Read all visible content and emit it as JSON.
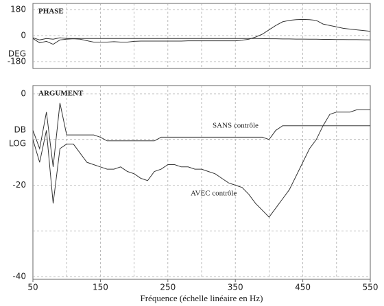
{
  "chart_data": [
    {
      "type": "line",
      "title": "PHASE",
      "ylabel": "DEG",
      "x": [
        50,
        60,
        70,
        80,
        90,
        100,
        110,
        120,
        130,
        140,
        150,
        160,
        170,
        180,
        190,
        200,
        210,
        220,
        230,
        240,
        250,
        260,
        270,
        280,
        290,
        300,
        310,
        320,
        330,
        340,
        350,
        360,
        370,
        380,
        390,
        400,
        410,
        420,
        430,
        440,
        450,
        460,
        470,
        480,
        490,
        500,
        510,
        520,
        530,
        540,
        550
      ],
      "series": [
        {
          "color": "#333333",
          "values": [
            -20,
            -50,
            -40,
            -60,
            -30,
            -25,
            -22,
            -25,
            -35,
            -45,
            -45,
            -45,
            -42,
            -45,
            -45,
            -40,
            -38,
            -38,
            -38,
            -38,
            -38,
            -38,
            -38,
            -36,
            -36,
            -36,
            -36,
            -36,
            -36,
            -36,
            -36,
            -32,
            -25,
            -10,
            10,
            40,
            70,
            95,
            105,
            110,
            112,
            110,
            105,
            80,
            70,
            60,
            50,
            45,
            40,
            35,
            30
          ]
        },
        {
          "color": "#333333",
          "values": [
            -15,
            -30,
            -20,
            -25,
            -15,
            -20,
            -20,
            -20,
            -20,
            -20,
            -20,
            -20,
            -20,
            -20,
            -20,
            -20,
            -20,
            -20,
            -20,
            -20,
            -20,
            -20,
            -20,
            -20,
            -20,
            -20,
            -20,
            -20,
            -20,
            -20,
            -20,
            -20,
            -20,
            -20,
            -21,
            -22,
            -22,
            -23,
            -23,
            -24,
            -24,
            -25,
            -25,
            -26,
            -26,
            -27,
            -27,
            -28,
            -28,
            -29,
            -30
          ]
        }
      ],
      "xlim": [
        50,
        550
      ],
      "xgrid": [
        100,
        150,
        200,
        250,
        300,
        350,
        400,
        450,
        500
      ],
      "ylim": [
        -180,
        180
      ],
      "yticks": [
        180,
        0,
        -180
      ],
      "grid": true
    },
    {
      "type": "line",
      "title": "ARGUMENT",
      "ylabel_lines": [
        "DB",
        "LOG"
      ],
      "xlabel": "Fréquence (échelle linéaire en Hz)",
      "x": [
        50,
        60,
        70,
        80,
        90,
        100,
        110,
        120,
        130,
        140,
        150,
        160,
        170,
        180,
        190,
        200,
        210,
        220,
        230,
        240,
        250,
        260,
        270,
        280,
        290,
        300,
        310,
        320,
        330,
        340,
        350,
        360,
        370,
        380,
        390,
        400,
        410,
        420,
        430,
        440,
        450,
        460,
        470,
        480,
        490,
        500,
        510,
        520,
        530,
        540,
        550
      ],
      "series": [
        {
          "name": "SANS contrôle",
          "color": "#333333",
          "values": [
            -8,
            -12,
            -4,
            -16,
            -2,
            -9,
            -9,
            -9,
            -9,
            -9,
            -9.5,
            -10.3,
            -10.3,
            -10.3,
            -10.3,
            -10.3,
            -10.3,
            -10.3,
            -10.3,
            -9.5,
            -9.5,
            -9.5,
            -9.5,
            -9.5,
            -9.5,
            -9.5,
            -9.5,
            -9.5,
            -9.5,
            -9.5,
            -9.5,
            -9.5,
            -9.5,
            -9.5,
            -9.5,
            -10,
            -8,
            -7,
            -7,
            -7,
            -7,
            -7,
            -7,
            -7,
            -7,
            -7,
            -7,
            -7,
            -7,
            -7,
            -7
          ]
        },
        {
          "name": "AVEC contrôle",
          "color": "#333333",
          "values": [
            -10,
            -15,
            -8,
            -24,
            -12,
            -11,
            -11,
            -13,
            -15,
            -15.5,
            -16,
            -16.5,
            -16.5,
            -16,
            -17,
            -17.5,
            -18.5,
            -19,
            -17,
            -16.5,
            -15.5,
            -15.5,
            -16,
            -16,
            -16.5,
            -16.5,
            -17,
            -17.5,
            -18.5,
            -19.5,
            -20,
            -20.5,
            -22,
            -24,
            -25.5,
            -27,
            -25,
            -23,
            -21,
            -18,
            -15,
            -12,
            -10,
            -7,
            -4.5,
            -4,
            -4,
            -4,
            -3.5,
            -3.5,
            -3.5
          ]
        }
      ],
      "xlim": [
        50,
        550
      ],
      "xticks": [
        50,
        150,
        250,
        350,
        450,
        550
      ],
      "xgrid": [
        100,
        150,
        200,
        250,
        300,
        350,
        400,
        450,
        500
      ],
      "ylim": [
        -40,
        0
      ],
      "yticks": [
        0,
        -20,
        -40
      ],
      "ygrid": [
        -10,
        -30
      ],
      "grid": true
    }
  ]
}
